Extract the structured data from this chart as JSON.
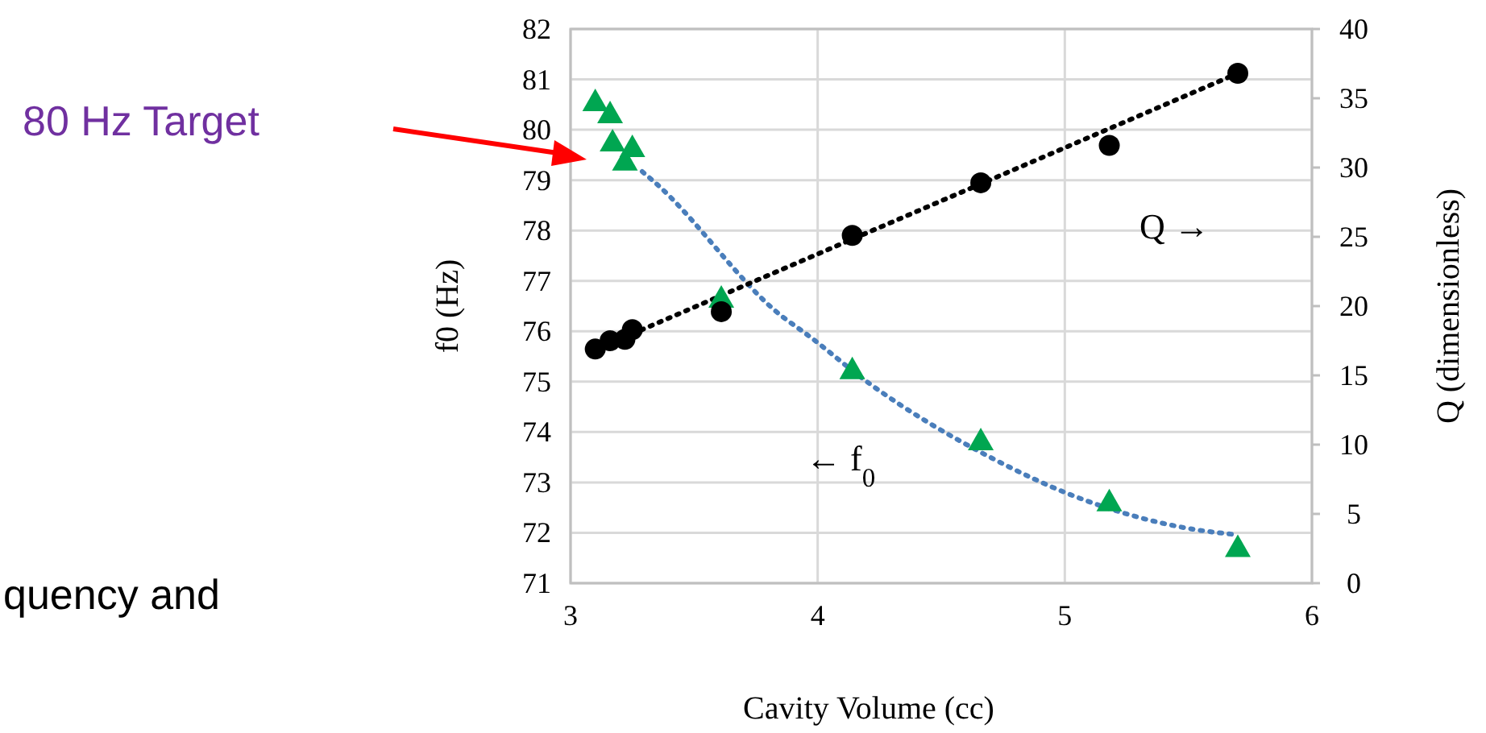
{
  "chart_data": {
    "type": "scatter",
    "xlabel": "Cavity Volume (cc)",
    "ylabel": "f0 (Hz)",
    "y2label": "Q (dimensionless)",
    "xlim": [
      3,
      6
    ],
    "xticks": [
      3,
      4,
      5,
      6
    ],
    "ylim": [
      71,
      82
    ],
    "yticks": [
      71,
      72,
      73,
      74,
      75,
      76,
      77,
      78,
      79,
      80,
      81,
      82
    ],
    "y2lim": [
      0,
      40
    ],
    "y2ticks": [
      0,
      5,
      10,
      15,
      20,
      25,
      30,
      35,
      40
    ],
    "grid": true,
    "series": [
      {
        "type": "line",
        "color": "#4a7ebb",
        "line_style": "dotted",
        "marker": "none",
        "x": [
          3.29,
          3.34,
          3.86,
          3.95,
          4.21,
          4.69,
          5.08,
          5.52,
          5.7
        ],
        "values": [
          79.17,
          78.96,
          76.28,
          75.96,
          74.96,
          73.52,
          72.65,
          72.07,
          71.96
        ]
      },
      {
        "type": "line",
        "color": "#000000",
        "line_style": "dotted",
        "marker": "none",
        "axis": "y2",
        "x": [
          3.25,
          5.7
        ],
        "values": [
          18.0,
          36.8
        ]
      },
      {
        "type": "scatter",
        "color": "#00a651",
        "marker": "triangle",
        "x": [
          3.1,
          3.16,
          3.17,
          3.25,
          3.22,
          3.61,
          4.14,
          4.66,
          5.18,
          5.7
        ],
        "values": [
          80.56,
          80.32,
          79.76,
          79.65,
          79.38,
          76.66,
          75.24,
          73.83,
          72.62,
          71.71
        ]
      },
      {
        "type": "scatter",
        "color": "#000000",
        "marker": "circle",
        "axis": "y2",
        "x": [
          3.1,
          3.16,
          3.22,
          3.25,
          3.61,
          4.14,
          4.66,
          5.18,
          5.7
        ],
        "values": [
          16.9,
          17.5,
          17.6,
          18.3,
          19.6,
          25.1,
          28.9,
          31.6,
          36.8
        ]
      }
    ],
    "annotations": [
      "80 Hz Target",
      "Q →",
      "← f$_{0}$",
      "quency and"
    ]
  }
}
